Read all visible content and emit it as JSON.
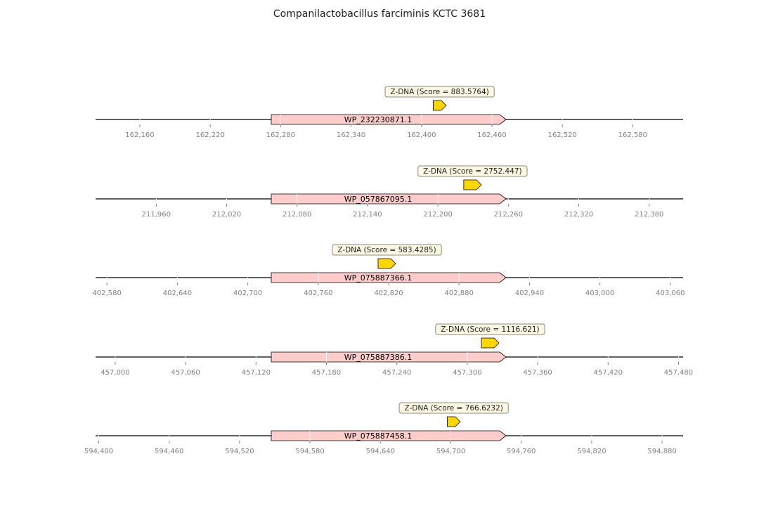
{
  "title": "Companilactobacillus farciminis KCTC 3681",
  "colors": {
    "gene_fill": "#ffcccc",
    "feature_fill": "#ffd700",
    "label_box_fill": "#fdf8e4",
    "label_box_stroke": "#8a8a78",
    "axis_line": "#000000",
    "tick_label": "#808080"
  },
  "tracks": [
    {
      "gene": {
        "name": "WP_232230871.1",
        "start": 162272,
        "end": 162472,
        "strand": "+"
      },
      "feature": {
        "label": "Z-DNA (Score = 883.5764)",
        "start": 162410,
        "end": 162418,
        "strand": "+"
      },
      "ticks": [
        162160,
        162220,
        162280,
        162340,
        162400,
        162460,
        162520,
        162580
      ],
      "tick_labels": [
        "162,160",
        "162,220",
        "162,280",
        "162,340",
        "162,400",
        "162,460",
        "162,520",
        "162,580"
      ]
    },
    {
      "gene": {
        "name": "WP_057867095.1",
        "start": 212058,
        "end": 212258,
        "strand": "+"
      },
      "feature": {
        "label": "Z-DNA (Score = 2752.447)",
        "start": 212222,
        "end": 212234,
        "strand": "+"
      },
      "ticks": [
        211960,
        212020,
        212080,
        212140,
        212200,
        212260,
        212320,
        212380
      ],
      "tick_labels": [
        "211,960",
        "212,020",
        "212,080",
        "212,140",
        "212,200",
        "212,260",
        "212,320",
        "212,380"
      ]
    },
    {
      "gene": {
        "name": "WP_075887366.1",
        "start": 402720,
        "end": 402920,
        "strand": "+"
      },
      "feature": {
        "label": "Z-DNA (Score = 583.4285)",
        "start": 402811,
        "end": 402823,
        "strand": "+"
      },
      "ticks": [
        402580,
        402640,
        402700,
        402760,
        402820,
        402880,
        402940,
        403000,
        403060
      ],
      "tick_labels": [
        "402,580",
        "402,640",
        "402,700",
        "402,760",
        "402,820",
        "402,880",
        "402,940",
        "403,000",
        "403,060"
      ]
    },
    {
      "gene": {
        "name": "WP_075887386.1",
        "start": 457133,
        "end": 457333,
        "strand": "+"
      },
      "feature": {
        "label": "Z-DNA (Score = 1116.621)",
        "start": 457312,
        "end": 457324,
        "strand": "+"
      },
      "ticks": [
        457000,
        457060,
        457120,
        457180,
        457240,
        457300,
        457360,
        457420,
        457480
      ],
      "tick_labels": [
        "457,000",
        "457,060",
        "457,120",
        "457,180",
        "457,240",
        "457,300",
        "457,360",
        "457,420",
        "457,480"
      ]
    },
    {
      "gene": {
        "name": "WP_075887458.1",
        "start": 594547,
        "end": 594747,
        "strand": "+"
      },
      "feature": {
        "label": "Z-DNA (Score = 766.6232)",
        "start": 594697,
        "end": 594705,
        "strand": "+"
      },
      "ticks": [
        594400,
        594460,
        594520,
        594580,
        594640,
        594700,
        594760,
        594820,
        594880
      ],
      "tick_labels": [
        "594,400",
        "594,460",
        "594,520",
        "594,580",
        "594,640",
        "594,700",
        "594,760",
        "594,820",
        "594,880"
      ]
    }
  ]
}
